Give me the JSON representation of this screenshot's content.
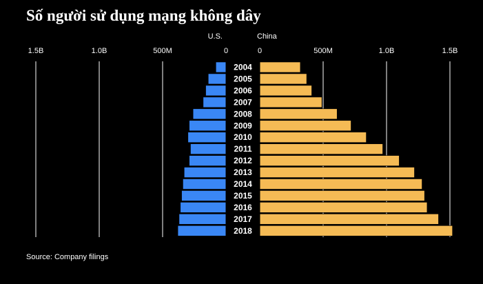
{
  "title": "Số người sử dụng mạng không dây",
  "source": "Source: Company filings",
  "colors": {
    "us": "#3a87f5",
    "china": "#f5bb55",
    "background": "#000000",
    "text": "#ffffff"
  },
  "chart_data": {
    "type": "bar",
    "orientation": "horizontal-butterfly",
    "title": "Số người sử dụng mạng không dây",
    "categories": [
      "2004",
      "2005",
      "2006",
      "2007",
      "2008",
      "2009",
      "2010",
      "2011",
      "2012",
      "2013",
      "2014",
      "2015",
      "2016",
      "2017",
      "2018"
    ],
    "series": [
      {
        "name": "U.S.",
        "values": [
          0.08,
          0.14,
          0.16,
          0.18,
          0.26,
          0.29,
          0.3,
          0.28,
          0.29,
          0.33,
          0.34,
          0.35,
          0.36,
          0.37,
          0.38
        ]
      },
      {
        "name": "China",
        "values": [
          0.32,
          0.37,
          0.41,
          0.49,
          0.61,
          0.72,
          0.84,
          0.97,
          1.1,
          1.22,
          1.28,
          1.3,
          1.32,
          1.41,
          1.52
        ]
      }
    ],
    "unit": "B",
    "xlim": [
      0,
      1.5
    ],
    "us_ticks": [
      {
        "value": 1.5,
        "label": "1.5B"
      },
      {
        "value": 1.0,
        "label": "1.0B"
      },
      {
        "value": 0.5,
        "label": "500M"
      },
      {
        "value": 0,
        "label": "0"
      }
    ],
    "china_ticks": [
      {
        "value": 0,
        "label": "0"
      },
      {
        "value": 0.5,
        "label": "500M"
      },
      {
        "value": 1.0,
        "label": "1.0B"
      },
      {
        "value": 1.5,
        "label": "1.5B"
      }
    ],
    "grid": true,
    "legend": "top-center"
  }
}
